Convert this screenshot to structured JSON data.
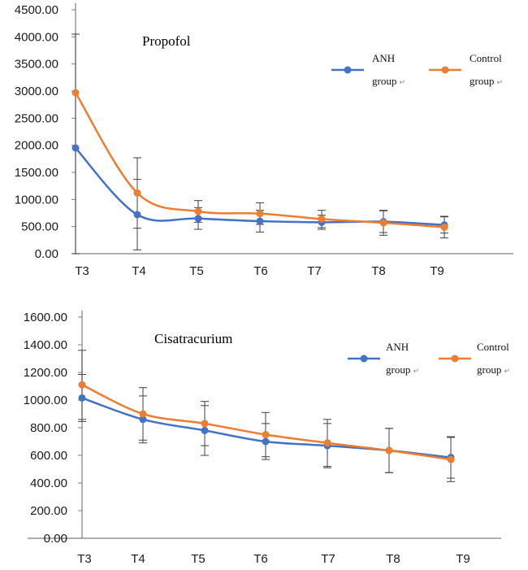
{
  "colors": {
    "anh": "#4472C4",
    "control": "#ED7D31",
    "axis": "#595959",
    "err": "#404040"
  },
  "chart_data": [
    {
      "type": "line",
      "title": "Propofol",
      "categories": [
        "T3",
        "T4",
        "T5",
        "T6",
        "T7",
        "T8",
        "T9"
      ],
      "yticks": [
        "0.00",
        "500.00",
        "1000.00",
        "1500.00",
        "2000.00",
        "2500.00",
        "3000.00",
        "3500.00",
        "4000.00",
        "4500.00"
      ],
      "ylim": [
        0,
        4500
      ],
      "xlabel": "",
      "ylabel": "",
      "legend_position": "top-right",
      "series": [
        {
          "name": "ANH group",
          "label_line1": "ANH",
          "label_line2": "group",
          "color": "#4472C4",
          "values": [
            1950,
            720,
            650,
            600,
            580,
            590,
            530
          ],
          "err": [
            2100,
            650,
            200,
            200,
            130,
            200,
            150
          ]
        },
        {
          "name": "Control group",
          "label_line1": "Control",
          "label_line2": "group",
          "color": "#ED7D31",
          "values": [
            2970,
            1120,
            780,
            740,
            640,
            570,
            490
          ],
          "err": [
            0,
            650,
            200,
            200,
            160,
            230,
            200
          ]
        }
      ]
    },
    {
      "type": "line",
      "title": "Cisatracurium",
      "categories": [
        "T3",
        "T4",
        "T5",
        "T6",
        "T7",
        "T8",
        "T9"
      ],
      "yticks": [
        "0.00",
        "200.00",
        "400.00",
        "600.00",
        "800.00",
        "1000.00",
        "1200.00",
        "1400.00",
        "1600.00"
      ],
      "ylim": [
        0,
        1600
      ],
      "xlabel": "",
      "ylabel": "",
      "legend_position": "top-right",
      "series": [
        {
          "name": "ANH group",
          "label_line1": "ANH",
          "label_line2": "group",
          "color": "#4472C4",
          "values": [
            1015,
            860,
            780,
            700,
            670,
            635,
            585
          ],
          "err": [
            170,
            170,
            180,
            130,
            160,
            160,
            150
          ]
        },
        {
          "name": "Control group",
          "label_line1": "Control",
          "label_line2": "group",
          "color": "#ED7D31",
          "values": [
            1110,
            900,
            830,
            750,
            690,
            635,
            570
          ],
          "err": [
            250,
            190,
            160,
            160,
            170,
            160,
            160
          ]
        }
      ]
    }
  ]
}
